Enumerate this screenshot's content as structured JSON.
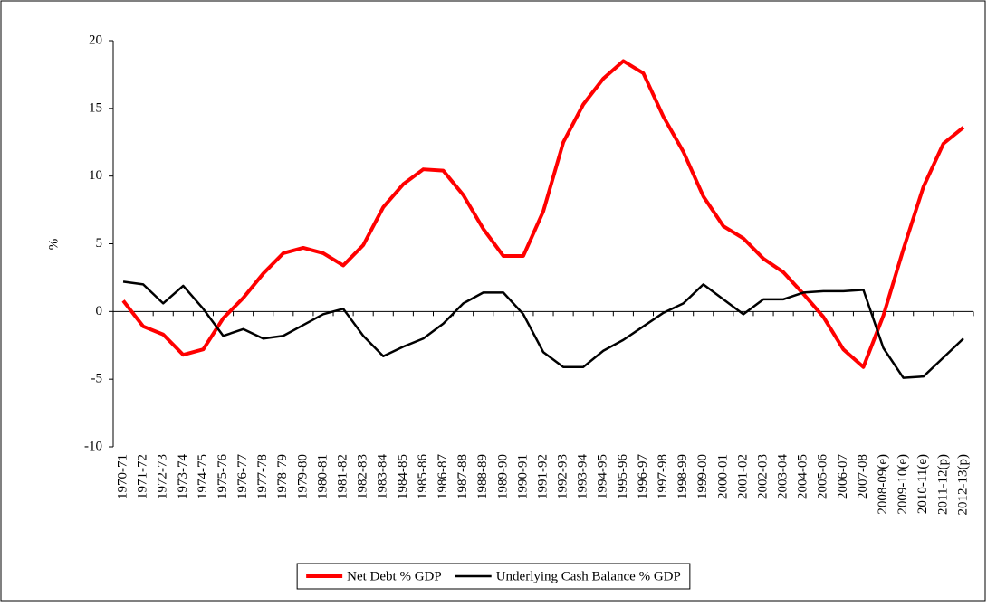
{
  "chart_data": {
    "type": "line",
    "y_label": "%",
    "categories": [
      "1970-71",
      "1971-72",
      "1972-73",
      "1973-74",
      "1974-75",
      "1975-76",
      "1976-77",
      "1977-78",
      "1978-79",
      "1979-80",
      "1980-81",
      "1981-82",
      "1982-83",
      "1983-84",
      "1984-85",
      "1985-86",
      "1986-87",
      "1987-88",
      "1988-89",
      "1989-90",
      "1990-91",
      "1991-92",
      "1992-93",
      "1993-94",
      "1994-95",
      "1995-96",
      "1996-97",
      "1997-98",
      "1998-99",
      "1999-00",
      "2000-01",
      "2001-02",
      "2002-03",
      "2003-04",
      "2004-05",
      "2005-06",
      "2006-07",
      "2007-08",
      "2008-09(e)",
      "2009-10(e)",
      "2010-11(e)",
      "2011-12(p)",
      "2012-13(p)"
    ],
    "series": [
      {
        "name": "Net Debt % GDP",
        "color": "#ff0000",
        "values": [
          0.8,
          -1.1,
          -1.7,
          -3.2,
          -2.8,
          -0.5,
          1.0,
          2.8,
          4.3,
          4.7,
          4.3,
          3.4,
          4.9,
          7.7,
          9.4,
          10.5,
          10.4,
          8.6,
          6.1,
          4.1,
          4.1,
          7.4,
          12.5,
          15.3,
          17.2,
          18.5,
          17.6,
          14.4,
          11.8,
          8.5,
          6.3,
          5.4,
          3.9,
          2.9,
          1.3,
          -0.4,
          -2.8,
          -4.1,
          -0.3,
          4.6,
          9.2,
          12.4,
          13.6
        ]
      },
      {
        "name": "Underlying Cash Balance % GDP",
        "color": "#000000",
        "values": [
          2.2,
          2.0,
          0.6,
          1.9,
          0.2,
          -1.8,
          -1.3,
          -2.0,
          -1.8,
          -1.0,
          -0.2,
          0.2,
          -1.8,
          -3.3,
          -2.6,
          -2.0,
          -0.9,
          0.6,
          1.4,
          1.4,
          -0.2,
          -3.0,
          -4.1,
          -4.1,
          -2.9,
          -2.1,
          -1.1,
          -0.1,
          0.6,
          2.0,
          0.9,
          -0.2,
          0.9,
          0.9,
          1.4,
          1.5,
          1.5,
          1.6,
          -2.7,
          -4.9,
          -4.8,
          -3.4,
          -2.0
        ]
      }
    ],
    "ylim": [
      -10,
      20
    ],
    "yticks": [
      -10,
      -5,
      0,
      5,
      10,
      15,
      20
    ],
    "legend": "bottom"
  }
}
